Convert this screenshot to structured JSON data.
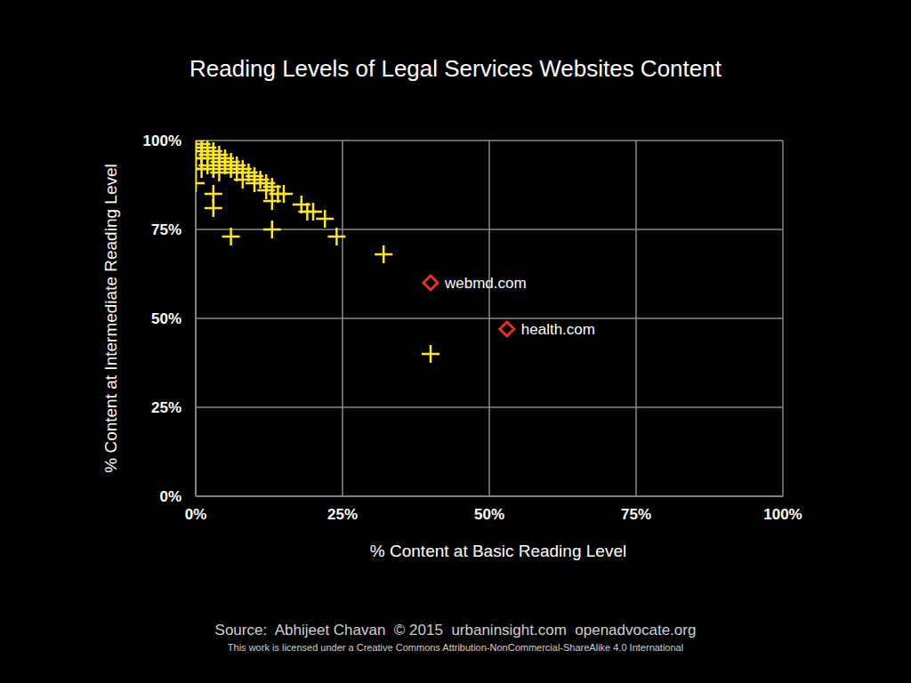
{
  "chart_data": {
    "type": "scatter",
    "title": "Reading Levels of Legal Services Websites Content",
    "x_label": "% Content at Basic Reading Level",
    "y_label": "% Content at Intermediate Reading Level",
    "xlim": [
      0,
      100
    ],
    "ylim": [
      0,
      100
    ],
    "xticks": [
      {
        "value": 0,
        "label": "0%"
      },
      {
        "value": 25,
        "label": "25%"
      },
      {
        "value": 50,
        "label": "50%"
      },
      {
        "value": 75,
        "label": "75%"
      },
      {
        "value": 100,
        "label": "100%"
      }
    ],
    "yticks": [
      {
        "value": 0,
        "label": "0%"
      },
      {
        "value": 25,
        "label": "25%"
      },
      {
        "value": 50,
        "label": "50%"
      },
      {
        "value": 75,
        "label": "75%"
      },
      {
        "value": 100,
        "label": "100%"
      }
    ],
    "grid": true,
    "series": [
      {
        "color": "#ffe81a",
        "marker": "plus",
        "x": [
          0,
          0,
          0,
          0,
          0,
          1,
          1,
          1,
          1,
          2,
          2,
          2,
          3,
          3,
          3,
          4,
          4,
          4,
          5,
          5,
          6,
          6,
          7,
          7,
          8,
          8,
          9,
          10,
          10,
          11,
          12,
          12,
          13,
          14,
          15,
          18,
          19,
          20,
          22,
          24,
          32,
          40,
          3,
          3,
          6,
          13,
          13
        ],
        "y": [
          100,
          98,
          95,
          92,
          88,
          99,
          97,
          95,
          92,
          98,
          96,
          93,
          97,
          95,
          92,
          96,
          94,
          91,
          95,
          93,
          94,
          92,
          93,
          91,
          92,
          89,
          91,
          90,
          88,
          89,
          88,
          86,
          87,
          85,
          85,
          82,
          80,
          80,
          78,
          73,
          68,
          40,
          85,
          81,
          73,
          75,
          83
        ]
      },
      {
        "color": "#e8321e",
        "marker": "diamond",
        "x": [
          40,
          53
        ],
        "y": [
          60,
          47
        ],
        "labels": [
          "webmd.com",
          "health.com"
        ]
      }
    ]
  },
  "source": "Source:  Abhijeet Chavan  © 2015  urbaninsight.com  openadvocate.org",
  "license": "This work is licensed under a Creative Commons Attribution-NonCommercial-ShareAlike 4.0 International"
}
